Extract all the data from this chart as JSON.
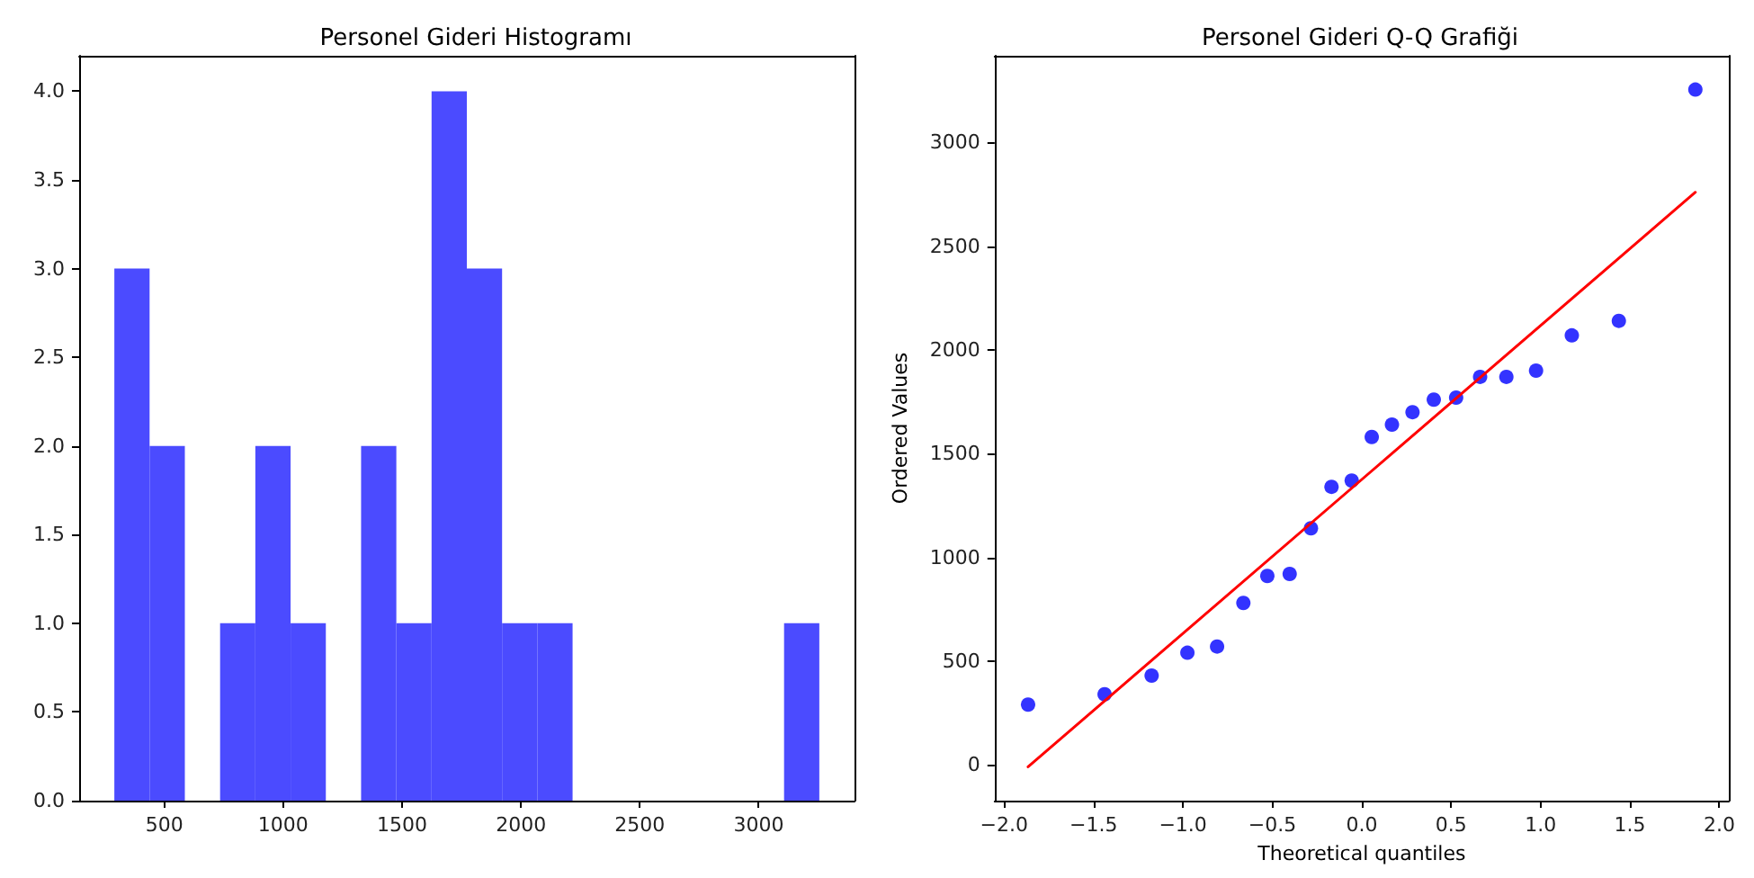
{
  "chart_data": [
    {
      "type": "histogram",
      "title": "Personel Gideri Histogramı",
      "color": "#4b4bff",
      "bins": [
        290,
        438.25,
        586.5,
        734.75,
        883,
        1031.25,
        1179.5,
        1327.75,
        1476,
        1624.25,
        1772.5,
        1920.75,
        2069,
        2217.25,
        2365.5,
        2513.75,
        2662,
        2810.25,
        2958.5,
        3106.75,
        3255
      ],
      "values": [
        3,
        2,
        0,
        1,
        2,
        1,
        0,
        2,
        1,
        4,
        3,
        1,
        1,
        0,
        0,
        0,
        0,
        0,
        0,
        1
      ],
      "xlim": [
        142,
        3403
      ],
      "xticks": [
        500,
        1000,
        1500,
        2000,
        2500,
        3000
      ],
      "ylim": [
        0,
        4.2
      ],
      "yticks": [
        {
          "value": 0,
          "label": "0.0"
        },
        {
          "value": 0.5,
          "label": "0.5"
        },
        {
          "value": 1,
          "label": "1.0"
        },
        {
          "value": 1.5,
          "label": "1.5"
        },
        {
          "value": 2,
          "label": "2.0"
        },
        {
          "value": 2.5,
          "label": "2.5"
        },
        {
          "value": 3,
          "label": "3.0"
        },
        {
          "value": 3.5,
          "label": "3.5"
        },
        {
          "value": 4,
          "label": "4.0"
        }
      ]
    },
    {
      "type": "scatter",
      "title": "Personel Gideri Q-Q Grafiği",
      "xlabel": "Theoretical quantiles",
      "ylabel": "Ordered Values",
      "series": [
        {
          "type": "scatter",
          "color": "#0000ff",
          "marker": "circle",
          "x": [
            -1.866,
            -1.438,
            -1.175,
            -0.975,
            -0.809,
            -0.662,
            -0.528,
            -0.403,
            -0.284,
            -0.169,
            -0.056,
            0.056,
            0.169,
            0.284,
            0.403,
            0.528,
            0.662,
            0.809,
            0.975,
            1.175,
            1.438,
            1.866
          ],
          "values": [
            290,
            340,
            430,
            540,
            570,
            780,
            910,
            920,
            1140,
            1340,
            1370,
            1580,
            1640,
            1700,
            1760,
            1770,
            1870,
            1870,
            1900,
            2070,
            2140,
            3255
          ]
        },
        {
          "type": "line",
          "color": "#ff0000",
          "x": [
            -1.866,
            1.866
          ],
          "values": [
            -10,
            2760
          ]
        }
      ],
      "xlim": [
        -2.053,
        2.053
      ],
      "xticks": [
        {
          "value": -2,
          "label": "−2.0"
        },
        {
          "value": -1.5,
          "label": "−1.5"
        },
        {
          "value": -1,
          "label": "−1.0"
        },
        {
          "value": -0.5,
          "label": "−0.5"
        },
        {
          "value": 0,
          "label": "0.0"
        },
        {
          "value": 0.5,
          "label": "0.5"
        },
        {
          "value": 1,
          "label": "1.0"
        },
        {
          "value": 1.5,
          "label": "1.5"
        },
        {
          "value": 2,
          "label": "2.0"
        }
      ],
      "ylim": [
        -173,
        3418
      ],
      "yticks": [
        0,
        500,
        1000,
        1500,
        2000,
        2500,
        3000
      ]
    }
  ]
}
